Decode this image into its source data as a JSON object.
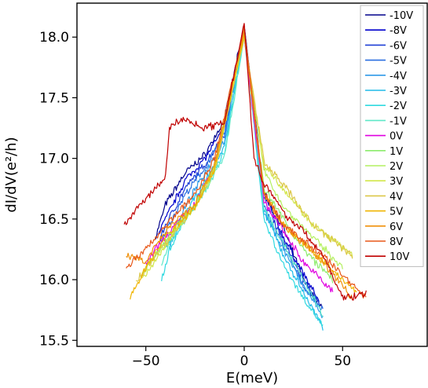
{
  "chart_data": {
    "type": "line",
    "xlabel": "E(meV)",
    "ylabel": "dI/dV(e²/h)",
    "xlim": [
      -85,
      93
    ],
    "ylim": [
      15.45,
      18.28
    ],
    "xticks": [
      -50,
      0,
      50
    ],
    "yticks": [
      15.5,
      16.0,
      16.5,
      17.0,
      17.5,
      18.0
    ],
    "xtick_labels": [
      "−50",
      "0",
      "50"
    ],
    "ytick_labels": [
      "15.5",
      "16.0",
      "16.5",
      "17.0",
      "17.5",
      "18.0"
    ],
    "legend_position": "top-right",
    "grid": false,
    "peak_at_zero": 18.12,
    "series": [
      {
        "name": "-10V",
        "color": "#00008b",
        "x": [
          -45,
          -40,
          -30,
          -20,
          -10,
          0,
          10,
          20,
          30,
          40
        ],
        "y": [
          16.35,
          16.62,
          16.88,
          17.03,
          17.32,
          18.1,
          16.72,
          16.42,
          16.0,
          15.75
        ]
      },
      {
        "name": "-8V",
        "color": "#0000cd",
        "x": [
          -44,
          -40,
          -30,
          -20,
          -10,
          0,
          10,
          20,
          30,
          38
        ],
        "y": [
          16.38,
          16.5,
          16.82,
          17.0,
          17.25,
          18.05,
          16.7,
          16.35,
          16.05,
          15.82
        ]
      },
      {
        "name": "-6V",
        "color": "#1f3fd6",
        "x": [
          -43,
          -40,
          -30,
          -20,
          -10,
          0,
          10,
          20,
          30,
          38
        ],
        "y": [
          16.32,
          16.45,
          16.75,
          16.95,
          17.2,
          18.08,
          16.66,
          16.32,
          16.0,
          15.8
        ]
      },
      {
        "name": "-5V",
        "color": "#2a6fe0",
        "x": [
          -42,
          -40,
          -30,
          -20,
          -10,
          0,
          10,
          20,
          30,
          40
        ],
        "y": [
          16.3,
          16.4,
          16.7,
          16.92,
          17.2,
          18.06,
          16.6,
          16.28,
          15.95,
          15.75
        ]
      },
      {
        "name": "-4V",
        "color": "#2f9ae8",
        "x": [
          -40,
          -35,
          -30,
          -20,
          -10,
          0,
          10,
          20,
          30,
          40
        ],
        "y": [
          16.28,
          16.4,
          16.6,
          16.88,
          17.15,
          18.1,
          16.55,
          16.25,
          15.95,
          15.7
        ]
      },
      {
        "name": "-3V",
        "color": "#20bce8",
        "x": [
          -40,
          -35,
          -30,
          -20,
          -10,
          0,
          10,
          20,
          30,
          40
        ],
        "y": [
          16.25,
          16.35,
          16.55,
          16.8,
          17.1,
          18.02,
          16.58,
          16.2,
          15.9,
          15.6
        ]
      },
      {
        "name": "-2V",
        "color": "#30d9e0",
        "x": [
          -42,
          -38,
          -30,
          -20,
          -10,
          0,
          10,
          20,
          30,
          40
        ],
        "y": [
          16.0,
          16.25,
          16.5,
          16.75,
          17.05,
          18.04,
          16.5,
          16.12,
          15.85,
          15.62
        ]
      },
      {
        "name": "-1V",
        "color": "#5ee8c8",
        "x": [
          -42,
          -38,
          -30,
          -20,
          -10,
          0,
          10,
          20,
          30,
          40
        ],
        "y": [
          16.1,
          16.3,
          16.5,
          16.72,
          17.02,
          18.0,
          16.6,
          16.3,
          16.0,
          15.7
        ]
      },
      {
        "name": "0V",
        "color": "#e000e0",
        "x": [
          -50,
          -45,
          -35,
          -25,
          -15,
          0,
          10,
          20,
          30,
          45
        ],
        "y": [
          16.12,
          16.25,
          16.45,
          16.62,
          16.95,
          18.0,
          16.65,
          16.4,
          16.15,
          15.9
        ]
      },
      {
        "name": "1V",
        "color": "#8cec6c",
        "x": [
          -50,
          -45,
          -35,
          -25,
          -15,
          0,
          10,
          20,
          30,
          45
        ],
        "y": [
          16.1,
          16.2,
          16.45,
          16.6,
          16.95,
          18.02,
          16.75,
          16.5,
          16.25,
          16.0
        ]
      },
      {
        "name": "2V",
        "color": "#b4f060",
        "x": [
          -52,
          -45,
          -35,
          -25,
          -15,
          0,
          10,
          20,
          35,
          50
        ],
        "y": [
          16.05,
          16.2,
          16.4,
          16.6,
          16.9,
          18.0,
          16.9,
          16.6,
          16.35,
          16.1
        ]
      },
      {
        "name": "3V",
        "color": "#d2e64a",
        "x": [
          -52,
          -45,
          -35,
          -25,
          -15,
          0,
          10,
          20,
          35,
          55
        ],
        "y": [
          16.0,
          16.15,
          16.42,
          16.62,
          16.92,
          18.0,
          16.95,
          16.75,
          16.45,
          16.2
        ]
      },
      {
        "name": "4V",
        "color": "#dcc848",
        "x": [
          -55,
          -45,
          -35,
          -25,
          -15,
          0,
          10,
          20,
          35,
          55
        ],
        "y": [
          15.98,
          16.2,
          16.4,
          16.6,
          16.9,
          18.0,
          16.98,
          16.78,
          16.45,
          16.2
        ]
      },
      {
        "name": "5V",
        "color": "#f0b400",
        "x": [
          -58,
          -50,
          -40,
          -25,
          -15,
          0,
          10,
          20,
          40,
          57
        ],
        "y": [
          15.85,
          16.1,
          16.35,
          16.6,
          16.92,
          18.02,
          16.72,
          16.45,
          16.15,
          15.9
        ]
      },
      {
        "name": "6V",
        "color": "#f0900a",
        "x": [
          -60,
          -50,
          -40,
          -25,
          -15,
          0,
          10,
          20,
          40,
          55
        ],
        "y": [
          16.2,
          16.15,
          16.4,
          16.62,
          16.95,
          18.05,
          16.7,
          16.45,
          16.15,
          15.85
        ]
      },
      {
        "name": "8V",
        "color": "#e8581a",
        "x": [
          -60,
          -50,
          -40,
          -25,
          -15,
          0,
          10,
          20,
          40,
          62
        ],
        "y": [
          16.1,
          16.25,
          16.45,
          16.7,
          17.0,
          18.08,
          16.72,
          16.45,
          16.2,
          15.85
        ]
      },
      {
        "name": "10V",
        "color": "#c00000",
        "x": [
          -61,
          -55,
          -45,
          -40,
          -38,
          -35,
          -30,
          -20,
          -10,
          0,
          5,
          10,
          20,
          30,
          40,
          50,
          62
        ],
        "y": [
          16.45,
          16.58,
          16.75,
          16.85,
          17.25,
          17.3,
          17.32,
          17.25,
          17.3,
          18.12,
          17.0,
          16.8,
          16.55,
          16.4,
          16.2,
          15.85,
          15.88
        ]
      }
    ]
  }
}
